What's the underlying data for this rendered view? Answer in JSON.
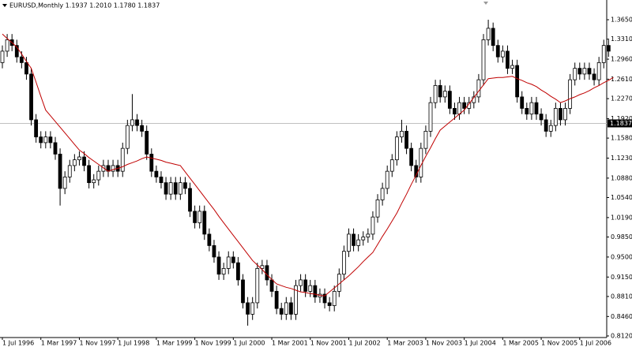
{
  "chart_data": {
    "type": "candlestick",
    "title": "EURUSD,Monthly  1.1937 1.2010 1.1780 1.1837",
    "categories": [
      "1 Jul 1996",
      null,
      null,
      null,
      null,
      null,
      null,
      null,
      "1 Mar 1997",
      null,
      null,
      null,
      null,
      null,
      null,
      null,
      "1 Nov 1997",
      null,
      null,
      null,
      null,
      null,
      null,
      null,
      "1 Jul 1998",
      null,
      null,
      null,
      null,
      null,
      null,
      null,
      "1 Mar 1999",
      null,
      null,
      null,
      null,
      null,
      null,
      null,
      "1 Nov 1999",
      null,
      null,
      null,
      null,
      null,
      null,
      null,
      "1 Jul 2000",
      null,
      null,
      null,
      null,
      null,
      null,
      null,
      "1 Mar 2001",
      null,
      null,
      null,
      null,
      null,
      null,
      null,
      "1 Nov 2001",
      null,
      null,
      null,
      null,
      null,
      null,
      null,
      "1 Jul 2002",
      null,
      null,
      null,
      null,
      null,
      null,
      null,
      "1 Mar 2003",
      null,
      null,
      null,
      null,
      null,
      null,
      null,
      "1 Nov 2003",
      null,
      null,
      null,
      null,
      null,
      null,
      null,
      "1 Jul 2004",
      null,
      null,
      null,
      null,
      null,
      null,
      null,
      "1 Mar 2005",
      null,
      null,
      null,
      null,
      null,
      null,
      null,
      "1 Nov 2005",
      null,
      null,
      null,
      null,
      null,
      null,
      null,
      "1 Jul 2006",
      null,
      null,
      null,
      null,
      null,
      null
    ],
    "open": [
      1.29,
      1.31,
      1.33,
      1.32,
      1.3,
      1.29,
      1.27,
      1.19,
      1.16,
      1.15,
      1.16,
      1.15,
      1.13,
      1.07,
      1.09,
      1.11,
      1.12,
      1.125,
      1.11,
      1.08,
      1.085,
      1.1,
      1.11,
      1.1,
      1.11,
      1.1,
      1.14,
      1.18,
      1.19,
      1.18,
      1.17,
      1.13,
      1.1,
      1.09,
      1.08,
      1.06,
      1.08,
      1.06,
      1.08,
      1.07,
      1.03,
      1.01,
      1.03,
      0.99,
      0.97,
      0.95,
      0.92,
      0.93,
      0.95,
      0.94,
      0.91,
      0.87,
      0.85,
      0.87,
      0.93,
      0.935,
      0.91,
      0.89,
      0.86,
      0.85,
      0.87,
      0.85,
      0.9,
      0.91,
      0.89,
      0.9,
      0.88,
      0.885,
      0.87,
      0.865,
      0.89,
      0.92,
      0.96,
      0.99,
      0.97,
      0.98,
      0.985,
      0.99,
      1.02,
      1.05,
      1.07,
      1.1,
      1.12,
      1.16,
      1.17,
      1.14,
      1.11,
      1.09,
      1.14,
      1.17,
      1.22,
      1.25,
      1.23,
      1.24,
      1.21,
      1.2,
      1.22,
      1.21,
      1.22,
      1.23,
      1.26,
      1.33,
      1.35,
      1.32,
      1.3,
      1.31,
      1.28,
      1.285,
      1.23,
      1.21,
      1.2,
      1.22,
      1.2,
      1.19,
      1.17,
      1.18,
      1.21,
      1.19,
      1.21,
      1.26,
      1.28,
      1.27,
      1.28,
      1.27,
      1.26,
      1.29,
      1.32
    ],
    "high": [
      1.32,
      1.34,
      1.34,
      1.33,
      1.31,
      1.3,
      1.28,
      1.2,
      1.17,
      1.17,
      1.17,
      1.16,
      1.14,
      1.1,
      1.12,
      1.13,
      1.135,
      1.135,
      1.12,
      1.095,
      1.11,
      1.12,
      1.12,
      1.12,
      1.12,
      1.15,
      1.19,
      1.235,
      1.2,
      1.19,
      1.18,
      1.14,
      1.11,
      1.1,
      1.09,
      1.09,
      1.09,
      1.09,
      1.09,
      1.08,
      1.04,
      1.04,
      1.04,
      1.0,
      0.98,
      0.96,
      0.94,
      0.96,
      0.96,
      0.95,
      0.92,
      0.88,
      0.88,
      0.94,
      0.945,
      0.945,
      0.92,
      0.9,
      0.87,
      0.88,
      0.88,
      0.91,
      0.92,
      0.92,
      0.91,
      0.91,
      0.895,
      0.895,
      0.88,
      0.9,
      0.93,
      0.97,
      1.0,
      1.0,
      0.99,
      0.995,
      1.0,
      1.03,
      1.06,
      1.08,
      1.11,
      1.13,
      1.17,
      1.19,
      1.18,
      1.15,
      1.12,
      1.15,
      1.18,
      1.23,
      1.26,
      1.26,
      1.25,
      1.25,
      1.22,
      1.23,
      1.23,
      1.23,
      1.24,
      1.27,
      1.34,
      1.365,
      1.36,
      1.33,
      1.32,
      1.32,
      1.295,
      1.295,
      1.24,
      1.22,
      1.23,
      1.23,
      1.21,
      1.2,
      1.19,
      1.22,
      1.22,
      1.22,
      1.27,
      1.29,
      1.29,
      1.29,
      1.29,
      1.28,
      1.3,
      1.33,
      1.33
    ],
    "low": [
      1.28,
      1.3,
      1.31,
      1.29,
      1.28,
      1.26,
      1.18,
      1.15,
      1.14,
      1.14,
      1.14,
      1.12,
      1.04,
      1.06,
      1.08,
      1.1,
      1.11,
      1.1,
      1.07,
      1.07,
      1.075,
      1.09,
      1.09,
      1.09,
      1.09,
      1.09,
      1.13,
      1.17,
      1.17,
      1.16,
      1.12,
      1.09,
      1.08,
      1.07,
      1.05,
      1.05,
      1.05,
      1.05,
      1.06,
      1.02,
      1.0,
      1.0,
      0.98,
      0.96,
      0.94,
      0.91,
      0.91,
      0.92,
      0.93,
      0.9,
      0.86,
      0.83,
      0.84,
      0.86,
      0.92,
      0.9,
      0.88,
      0.85,
      0.84,
      0.84,
      0.84,
      0.84,
      0.89,
      0.88,
      0.88,
      0.87,
      0.87,
      0.86,
      0.855,
      0.855,
      0.88,
      0.91,
      0.95,
      0.96,
      0.96,
      0.97,
      0.975,
      0.98,
      1.01,
      1.04,
      1.06,
      1.09,
      1.11,
      1.15,
      1.13,
      1.1,
      1.08,
      1.08,
      1.13,
      1.16,
      1.21,
      1.22,
      1.22,
      1.2,
      1.19,
      1.19,
      1.2,
      1.2,
      1.21,
      1.22,
      1.25,
      1.32,
      1.31,
      1.29,
      1.29,
      1.27,
      1.27,
      1.22,
      1.2,
      1.19,
      1.19,
      1.19,
      1.18,
      1.16,
      1.16,
      1.17,
      1.18,
      1.18,
      1.2,
      1.25,
      1.26,
      1.26,
      1.26,
      1.25,
      1.25,
      1.28,
      1.3
    ],
    "close": [
      1.31,
      1.33,
      1.32,
      1.3,
      1.29,
      1.27,
      1.19,
      1.16,
      1.15,
      1.16,
      1.15,
      1.13,
      1.07,
      1.09,
      1.11,
      1.12,
      1.125,
      1.11,
      1.08,
      1.085,
      1.1,
      1.11,
      1.1,
      1.11,
      1.1,
      1.14,
      1.18,
      1.19,
      1.18,
      1.17,
      1.13,
      1.1,
      1.09,
      1.08,
      1.06,
      1.08,
      1.06,
      1.08,
      1.07,
      1.03,
      1.01,
      1.03,
      0.99,
      0.97,
      0.95,
      0.92,
      0.93,
      0.95,
      0.94,
      0.91,
      0.87,
      0.85,
      0.87,
      0.93,
      0.935,
      0.91,
      0.89,
      0.86,
      0.85,
      0.87,
      0.85,
      0.9,
      0.91,
      0.89,
      0.9,
      0.88,
      0.885,
      0.87,
      0.865,
      0.89,
      0.92,
      0.96,
      0.99,
      0.97,
      0.98,
      0.985,
      0.99,
      1.02,
      1.05,
      1.07,
      1.1,
      1.12,
      1.16,
      1.17,
      1.14,
      1.11,
      1.09,
      1.14,
      1.17,
      1.22,
      1.25,
      1.23,
      1.24,
      1.21,
      1.2,
      1.22,
      1.21,
      1.22,
      1.23,
      1.26,
      1.33,
      1.35,
      1.32,
      1.3,
      1.31,
      1.28,
      1.285,
      1.23,
      1.21,
      1.2,
      1.22,
      1.2,
      1.19,
      1.17,
      1.18,
      1.21,
      1.19,
      1.21,
      1.26,
      1.28,
      1.27,
      1.28,
      1.27,
      1.26,
      1.29,
      1.32,
      1.31
    ],
    "up_color": "#ffffff",
    "down_color": "#000000",
    "ma": {
      "color": "#c00000",
      "values": [
        1.34,
        1.332,
        1.325,
        1.317,
        1.305,
        1.292,
        1.28,
        1.256,
        1.231,
        1.207,
        1.197,
        1.187,
        1.177,
        1.167,
        1.157,
        1.147,
        1.137,
        1.131,
        1.124,
        1.118,
        1.112,
        1.106,
        1.1,
        1.103,
        1.105,
        1.108,
        1.112,
        1.115,
        1.118,
        1.122,
        1.125,
        1.123,
        1.121,
        1.119,
        1.116,
        1.114,
        1.112,
        1.11,
        1.099,
        1.088,
        1.077,
        1.066,
        1.055,
        1.044,
        1.033,
        1.021,
        1.01,
        0.999,
        0.988,
        0.977,
        0.966,
        0.955,
        0.944,
        0.936,
        0.928,
        0.919,
        0.911,
        0.903,
        0.9,
        0.897,
        0.895,
        0.892,
        0.889,
        0.888,
        0.886,
        0.885,
        0.883,
        0.882,
        0.889,
        0.896,
        0.903,
        0.91,
        0.917,
        0.925,
        0.933,
        0.942,
        0.95,
        0.958,
        0.972,
        0.986,
        0.999,
        1.013,
        1.027,
        1.044,
        1.06,
        1.077,
        1.093,
        1.11,
        1.126,
        1.141,
        1.157,
        1.172,
        1.179,
        1.186,
        1.193,
        1.2,
        1.207,
        1.218,
        1.229,
        1.24,
        1.251,
        1.262,
        1.263,
        1.264,
        1.264,
        1.265,
        1.266,
        1.262,
        1.259,
        1.255,
        1.252,
        1.248,
        1.242,
        1.237,
        1.231,
        1.226,
        1.22,
        1.223,
        1.227,
        1.23,
        1.234,
        1.237,
        1.241,
        1.246,
        1.25,
        1.255,
        1.259,
        1.264
      ]
    },
    "current_price": {
      "value": 1.1837,
      "label": "1.1837"
    },
    "ylim": [
      0.8092,
      1.3995
    ],
    "yticks": [
      {
        "value": 1.365,
        "label": "1.3650"
      },
      {
        "value": 1.331,
        "label": "1.3310"
      },
      {
        "value": 1.296,
        "label": "1.2960"
      },
      {
        "value": 1.261,
        "label": "1.2610"
      },
      {
        "value": 1.227,
        "label": "1.2270"
      },
      {
        "value": 1.192,
        "label": "1.1920"
      },
      {
        "value": 1.158,
        "label": "1.1580"
      },
      {
        "value": 1.123,
        "label": "1.1230"
      },
      {
        "value": 1.088,
        "label": "1.0880"
      },
      {
        "value": 1.054,
        "label": "1.0540"
      },
      {
        "value": 1.019,
        "label": "1.0190"
      },
      {
        "value": 0.985,
        "label": "0.9850"
      },
      {
        "value": 0.95,
        "label": "0.9500"
      },
      {
        "value": 0.915,
        "label": "0.9150"
      },
      {
        "value": 0.881,
        "label": "0.8810"
      },
      {
        "value": 0.846,
        "label": "0.8460"
      },
      {
        "value": 0.812,
        "label": "0.8120"
      }
    ]
  }
}
